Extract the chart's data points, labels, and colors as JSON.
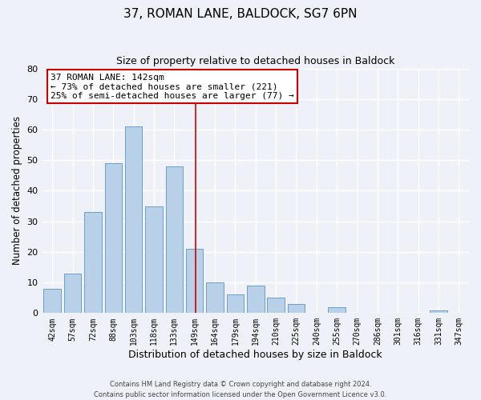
{
  "title": "37, ROMAN LANE, BALDOCK, SG7 6PN",
  "subtitle": "Size of property relative to detached houses in Baldock",
  "xlabel": "Distribution of detached houses by size in Baldock",
  "ylabel": "Number of detached properties",
  "bar_labels": [
    "42sqm",
    "57sqm",
    "72sqm",
    "88sqm",
    "103sqm",
    "118sqm",
    "133sqm",
    "149sqm",
    "164sqm",
    "179sqm",
    "194sqm",
    "210sqm",
    "225sqm",
    "240sqm",
    "255sqm",
    "270sqm",
    "286sqm",
    "301sqm",
    "316sqm",
    "331sqm",
    "347sqm"
  ],
  "bar_values": [
    8,
    13,
    33,
    49,
    61,
    35,
    48,
    21,
    10,
    6,
    9,
    5,
    3,
    0,
    2,
    0,
    0,
    0,
    0,
    1,
    0
  ],
  "bar_color": "#b8d0e8",
  "bar_edge_color": "#6a9fc8",
  "background_color": "#eef2f8",
  "grid_color": "#ffffff",
  "annotation_box_text": "37 ROMAN LANE: 142sqm\n← 73% of detached houses are smaller (221)\n25% of semi-detached houses are larger (77) →",
  "annotation_box_color": "#ffffff",
  "annotation_box_edge_color": "#cc0000",
  "annotation_line_color": "#cc0000",
  "ylim": [
    0,
    80
  ],
  "yticks": [
    0,
    10,
    20,
    30,
    40,
    50,
    60,
    70,
    80
  ],
  "footer_line1": "Contains HM Land Registry data © Crown copyright and database right 2024.",
  "footer_line2": "Contains public sector information licensed under the Open Government Licence v3.0."
}
